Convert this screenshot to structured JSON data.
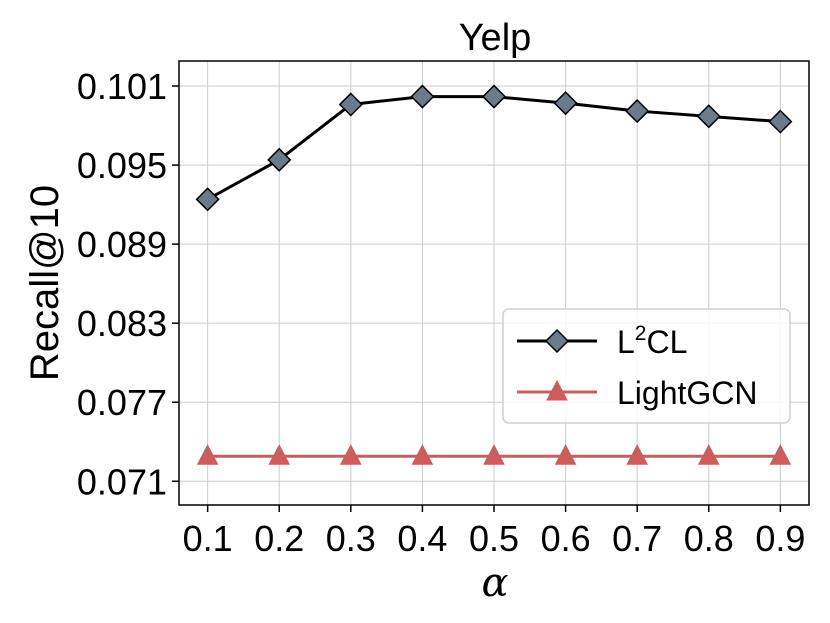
{
  "chart_data": {
    "type": "line",
    "title": "Yelp",
    "xlabel": "α",
    "ylabel": "Recall@10",
    "x": [
      0.1,
      0.2,
      0.3,
      0.4,
      0.5,
      0.6,
      0.7,
      0.8,
      0.9
    ],
    "x_tick_labels": [
      "0.1",
      "0.2",
      "0.3",
      "0.4",
      "0.5",
      "0.6",
      "0.7",
      "0.8",
      "0.9"
    ],
    "y_ticks": [
      0.071,
      0.077,
      0.083,
      0.089,
      0.095,
      0.101
    ],
    "y_tick_labels": [
      "0.071",
      "0.077",
      "0.083",
      "0.089",
      "0.095",
      "0.101"
    ],
    "xlim": [
      0.06,
      0.94
    ],
    "ylim": [
      0.0692,
      0.1029
    ],
    "grid": true,
    "legend_position": "center-right",
    "series": [
      {
        "name": "L²CL",
        "name_base": "L",
        "name_sup": "2",
        "name_rest": "CL",
        "color": "#000000",
        "marker_fill": "#6b7b8c",
        "marker": "diamond",
        "values": [
          0.0924,
          0.0954,
          0.0996,
          0.1002,
          0.1002,
          0.0997,
          0.0991,
          0.0987,
          0.0983
        ]
      },
      {
        "name": "LightGCN",
        "color": "#cd5c5c",
        "marker_fill": "#cd5c5c",
        "marker": "triangle",
        "values": [
          0.0729,
          0.0729,
          0.0729,
          0.0729,
          0.0729,
          0.0729,
          0.0729,
          0.0729,
          0.0729
        ]
      }
    ]
  }
}
